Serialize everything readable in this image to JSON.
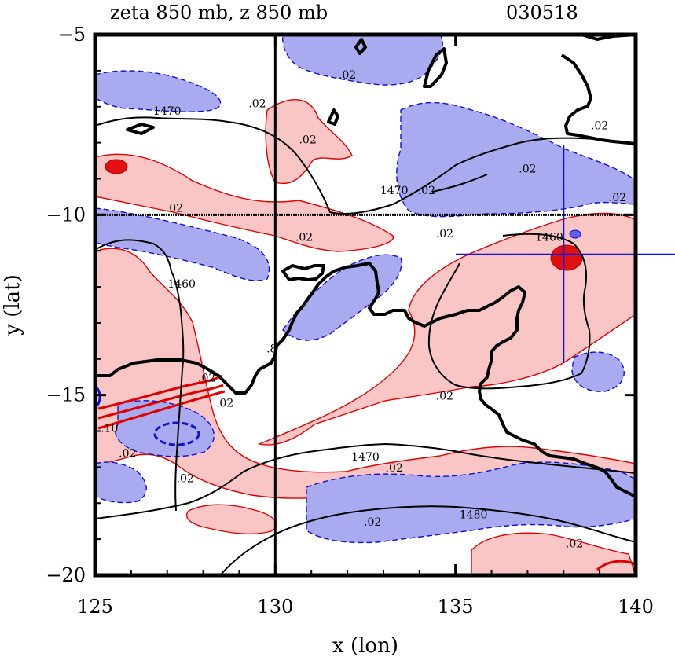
{
  "chart_data": {
    "type": "contour",
    "title_left": "zeta 850 mb, z 850 mb",
    "title_right": "030518",
    "xlabel": "x (lon)",
    "ylabel": "y (lat)",
    "xlim": [
      125,
      140
    ],
    "ylim": [
      -20,
      -5
    ],
    "xticks": [
      125,
      130,
      135,
      140
    ],
    "yticks": [
      -5,
      -10,
      -15,
      -20
    ],
    "x_tick_labels": [
      "125",
      "130",
      "135",
      "140"
    ],
    "y_tick_labels": [
      "−5",
      "−10",
      "−15",
      "−20"
    ],
    "reference_lines": {
      "x": 130,
      "y": -10
    },
    "marker_crosshair": {
      "lon": 138,
      "lat": -11.1
    },
    "height_contour_labels": [
      {
        "text": "1470",
        "lon": 127.0,
        "lat": -7.2
      },
      {
        "text": "1470",
        "lon": 133.3,
        "lat": -9.4
      },
      {
        "text": "1460",
        "lon": 127.4,
        "lat": -12.0
      },
      {
        "text": "1460",
        "lon": 137.6,
        "lat": -10.7
      },
      {
        "text": "1470",
        "lon": 132.5,
        "lat": -16.8
      },
      {
        "text": "1480",
        "lon": 135.5,
        "lat": -18.4
      }
    ],
    "vorticity_contour_labels": [
      {
        "text": ".02",
        "lon": 129.5,
        "lat": -7.0
      },
      {
        "text": ".02",
        "lon": 132.0,
        "lat": -6.2
      },
      {
        "text": ".02",
        "lon": 130.9,
        "lat": -8.0
      },
      {
        "text": ".02",
        "lon": 134.2,
        "lat": -9.4
      },
      {
        "text": ".02",
        "lon": 127.2,
        "lat": -9.9
      },
      {
        "text": ".02",
        "lon": 130.8,
        "lat": -10.7
      },
      {
        "text": ".02",
        "lon": 134.7,
        "lat": -10.6
      },
      {
        "text": ".02",
        "lon": 137.0,
        "lat": -8.8
      },
      {
        "text": ".02",
        "lon": 139.0,
        "lat": -7.6
      },
      {
        "text": ".02",
        "lon": 139.5,
        "lat": -9.6
      },
      {
        "text": ".02",
        "lon": 128.1,
        "lat": -14.6
      },
      {
        "text": ".02",
        "lon": 128.6,
        "lat": -15.3
      },
      {
        "text": ".02",
        "lon": 134.7,
        "lat": -15.1
      },
      {
        "text": ".02",
        "lon": 133.3,
        "lat": -17.1
      },
      {
        "text": ".02",
        "lon": 127.5,
        "lat": -17.4
      },
      {
        "text": ".02",
        "lon": 125.9,
        "lat": -16.7
      },
      {
        "text": ".02",
        "lon": 132.7,
        "lat": -18.6
      },
      {
        "text": ".02",
        "lon": 138.3,
        "lat": -19.2
      },
      {
        "text": ".10",
        "lon": 125.4,
        "lat": -16.0
      },
      {
        "text": ".8",
        "lon": 129.9,
        "lat": -13.8
      }
    ],
    "positive_vorticity_fill": "#f9c5c5",
    "negative_vorticity_fill": "#aaaaf0",
    "positive_contour_color": "#e00000",
    "negative_contour_color": "#1010d0",
    "height_contour_color": "#000000"
  }
}
